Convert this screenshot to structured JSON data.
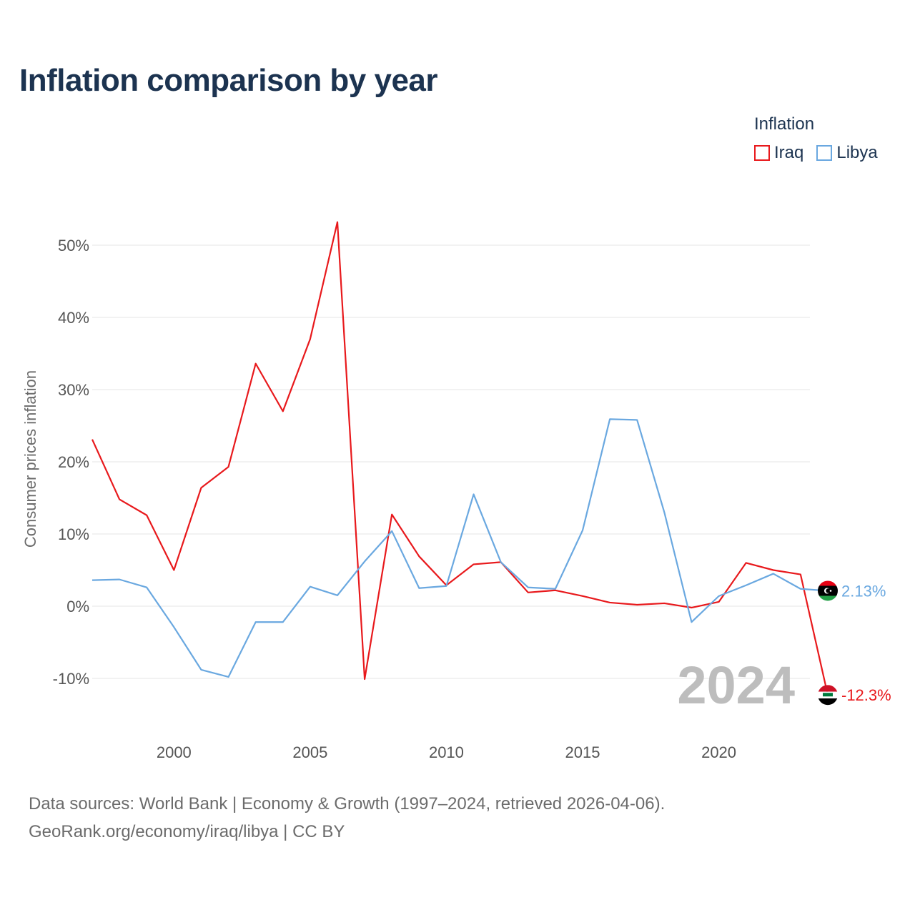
{
  "title": "Inflation comparison by year",
  "legend": {
    "title": "Inflation",
    "entries": [
      {
        "label": "Iraq",
        "color": "#e8191c"
      },
      {
        "label": "Libya",
        "color": "#6aa8e0"
      }
    ]
  },
  "footer": {
    "line1": "Data sources: World Bank | Economy & Growth (1997–2024, retrieved 2026-04-06).",
    "line2": "GeoRank.org/economy/iraq/libya | CC BY"
  },
  "chart_data": {
    "type": "line",
    "title": "Inflation comparison by year",
    "xlabel": "",
    "ylabel": "Consumer prices inflation",
    "xlim": [
      1997,
      2024
    ],
    "ylim": [
      -15,
      55
    ],
    "x_ticks": [
      2000,
      2005,
      2010,
      2015,
      2020
    ],
    "x_tick_labels": [
      "2000",
      "2005",
      "2010",
      "2015",
      "2020"
    ],
    "y_ticks": [
      -10,
      0,
      10,
      20,
      30,
      40,
      50
    ],
    "y_tick_labels": [
      "-10%",
      "0%",
      "10%",
      "20%",
      "30%",
      "40%",
      "50%"
    ],
    "grid": true,
    "current_year": "2024",
    "x": [
      1997,
      1998,
      1999,
      2000,
      2001,
      2002,
      2003,
      2004,
      2005,
      2006,
      2007,
      2008,
      2009,
      2010,
      2011,
      2012,
      2013,
      2014,
      2015,
      2016,
      2017,
      2018,
      2019,
      2020,
      2021,
      2022,
      2023,
      2024
    ],
    "series": [
      {
        "name": "Iraq",
        "color": "#e8191c",
        "end_label": "-12.3%",
        "values": [
          23.1,
          14.8,
          12.6,
          5.0,
          16.4,
          19.3,
          33.6,
          27.0,
          37.0,
          53.2,
          -10.1,
          12.7,
          6.9,
          2.9,
          5.8,
          6.1,
          1.9,
          2.2,
          1.4,
          0.5,
          0.2,
          0.4,
          -0.2,
          0.6,
          6.0,
          5.0,
          4.4,
          -12.3
        ]
      },
      {
        "name": "Libya",
        "color": "#6aa8e0",
        "end_label": "2.13%",
        "values": [
          3.6,
          3.7,
          2.6,
          -2.9,
          -8.8,
          -9.8,
          -2.2,
          -2.2,
          2.7,
          1.5,
          6.2,
          10.4,
          2.5,
          2.8,
          15.5,
          6.1,
          2.6,
          2.4,
          10.5,
          25.9,
          25.8,
          13.0,
          -2.2,
          1.4,
          2.9,
          4.5,
          2.4,
          2.13
        ]
      }
    ]
  }
}
